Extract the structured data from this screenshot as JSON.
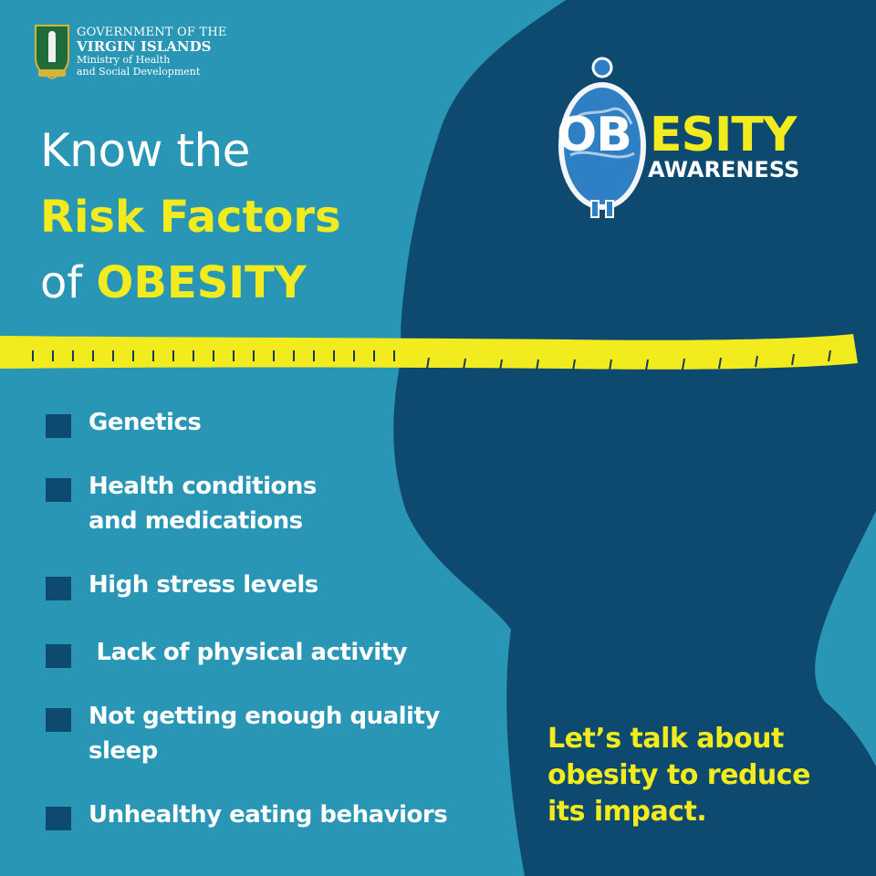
{
  "government": {
    "line1": "GOVERNMENT OF THE",
    "line2": "VIRGIN ISLANDS",
    "line3": "Ministry of Health",
    "line4": "and Social Development",
    "crest_icon": "crest-icon"
  },
  "headline": {
    "line1": "Know the",
    "line2": "Risk Factors",
    "line3_prefix": "of",
    "line3_highlight": "OBESITY"
  },
  "campaign_logo": {
    "word_part1": "OB",
    "word_part2": "ESITY",
    "subtitle": "AWARENESS",
    "icon": "globe-person-icon"
  },
  "risk_factors": [
    {
      "line1": "Genetics",
      "line2": ""
    },
    {
      "line1": "Health conditions",
      "line2": "and medications"
    },
    {
      "line1": "High stress levels",
      "line2": ""
    },
    {
      "line1": " Lack of physical activity",
      "line2": ""
    },
    {
      "line1": "Not getting enough quality",
      "line2": "sleep"
    },
    {
      "line1": "Unhealthy eating behaviors",
      "line2": ""
    }
  ],
  "call_to_action": {
    "line1": "Let’s talk about",
    "line2": "obesity to reduce",
    "line3": "its impact."
  },
  "colors": {
    "background": "#2a96b6",
    "silhouette": "#0e4a70",
    "accent_yellow": "#f2ec1e",
    "text_white": "#ffffff",
    "bullet": "#0e4a70"
  },
  "decorations": {
    "tape_icon": "measuring-tape-icon",
    "silhouette_icon": "body-silhouette-icon"
  }
}
